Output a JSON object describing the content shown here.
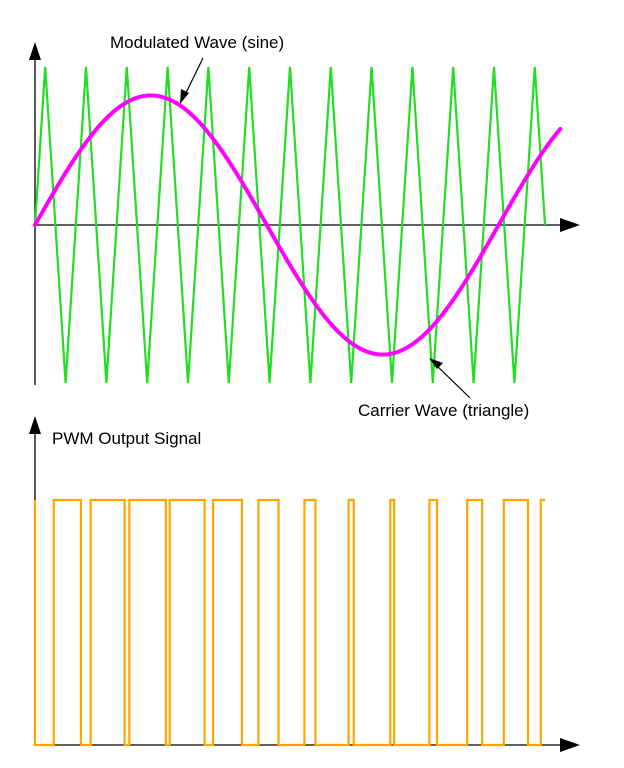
{
  "diagram": {
    "modulated_label": "Modulated Wave (sine)",
    "carrier_label": "Carrier Wave (triangle)",
    "pwm_label": "PWM Output Signal"
  },
  "chart_data": [
    {
      "type": "line",
      "series": [
        {
          "wave": "sine",
          "color": "#ff00ff",
          "amplitude": 0.82,
          "cycles": 1.1
        },
        {
          "wave": "triangle",
          "color": "#22dd22",
          "amplitude": 1.0,
          "cycles": 12.5
        }
      ],
      "xlim": [
        0,
        1
      ],
      "ylim": [
        -1,
        1
      ]
    },
    {
      "type": "line",
      "series": [
        {
          "wave": "pwm",
          "color": "#ffa500",
          "levels": [
            "low",
            "high"
          ]
        }
      ]
    }
  ]
}
